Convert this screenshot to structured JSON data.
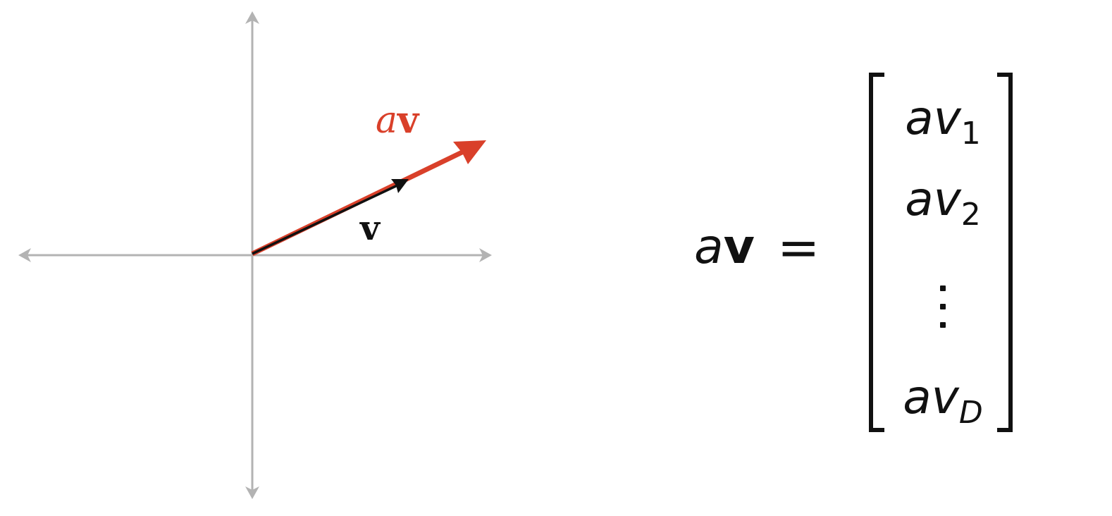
{
  "diagram": {
    "vector_label": "v",
    "scaled_vector_label": "av",
    "scaled_label_scalar": "a",
    "scaled_label_vector": "v",
    "colors": {
      "axes": "#b3b3b3",
      "vector": "#111111",
      "scaled_vector": "#d9402a"
    }
  },
  "equation": {
    "lhs_scalar": "a",
    "lhs_vector": "v",
    "equals": "=",
    "entries": [
      {
        "scalar": "a",
        "var": "v",
        "sub": "1"
      },
      {
        "scalar": "a",
        "var": "v",
        "sub": "2"
      },
      {
        "scalar": "a",
        "var": "v",
        "sub": "D"
      }
    ]
  }
}
